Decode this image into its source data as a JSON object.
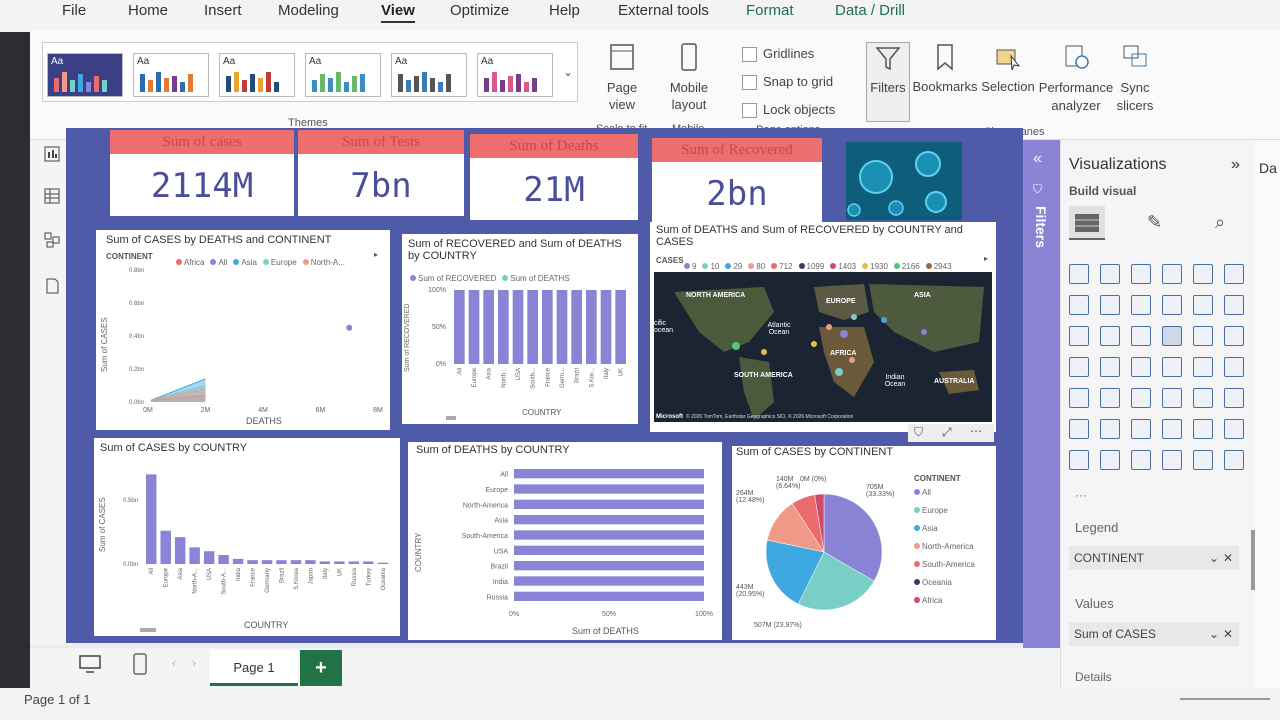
{
  "menu": {
    "items": [
      "File",
      "Home",
      "Insert",
      "Modeling",
      "View",
      "Optimize",
      "Help",
      "External tools"
    ],
    "contextual": [
      "Format",
      "Data / Drill"
    ],
    "active": "View"
  },
  "ribbon": {
    "themes_group": "Themes",
    "page_view": "Page view",
    "mobile_layout": "Mobile layout",
    "scale_to_fit": "Scale to fit",
    "mobile_group": "Mobile",
    "gridlines": "Gridlines",
    "snap_to_grid": "Snap to grid",
    "lock_objects": "Lock objects",
    "page_options_group": "Page options",
    "filters": "Filters",
    "bookmarks": "Bookmarks",
    "selection": "Selection",
    "performance_analyzer": "Performance analyzer",
    "sync_slicers": "Sync slicers",
    "show_panes_group": "Show panes"
  },
  "kpis": [
    {
      "label": "Sum of cases",
      "value": "2114M"
    },
    {
      "label": "Sum of Tests",
      "value": "7bn"
    },
    {
      "label": "Sum of Deaths",
      "value": "21M"
    },
    {
      "label": "Sum of Recovered",
      "value": "2bn"
    }
  ],
  "visuals": {
    "area_title": "Sum of CASES by DEATHS and CONTINENT",
    "area_legend_title": "CONTINENT",
    "area_legend": [
      "Africa",
      "All",
      "Asia",
      "Europe",
      "North-A..."
    ],
    "area_yticks": [
      "0.8bn",
      "0.6bn",
      "0.4bn",
      "0.2bn",
      "0.0bn"
    ],
    "area_xticks": [
      "0M",
      "2M",
      "4M",
      "6M",
      "8M"
    ],
    "area_xlabel": "DEATHS",
    "area_ylabel": "Sum of CASES",
    "recov_title": "Sum of RECOVERED and Sum of DEATHS by COUNTRY",
    "recov_legend": [
      "Sum of RECOVERED",
      "Sum of DEATHS"
    ],
    "recov_yticks": [
      "100%",
      "50%",
      "0%"
    ],
    "recov_ylabel": "Sum of RECOVERED",
    "recov_xlabel": "COUNTRY",
    "recov_countries": [
      "All",
      "Europe",
      "Asia",
      "North...",
      "USA",
      "South...",
      "France",
      "Germ...",
      "Brazil",
      "S.Kor...",
      "Italy",
      "UK"
    ],
    "map_title": "Sum of DEATHS and Sum of RECOVERED by COUNTRY and CASES",
    "map_legend_title": "CASES",
    "map_legend": [
      "9",
      "10",
      "29",
      "80",
      "712",
      "1099",
      "1403",
      "1930",
      "2166",
      "2943"
    ],
    "map_labels": [
      "NORTH AMERICA",
      "EUROPE",
      "ASIA",
      "Atlantic Ocean",
      "AFRICA",
      "SOUTH AMERICA",
      "Indian Ocean",
      "AUSTRALIA",
      "cific ocean"
    ],
    "map_credit": "© 2026 TomTom, Earthstar Geographics SIO, © 2026 Microsoft Corporation",
    "map_ms": "Microsoft",
    "cases_country_title": "Sum of CASES by COUNTRY",
    "cases_country_yticks": [
      "0.5bn",
      "0.0bn"
    ],
    "cases_country_ylabel": "Sum of CASES",
    "cases_country_xlabel": "COUNTRY",
    "cases_country_names": [
      "All",
      "Europe",
      "Asia",
      "North-A...",
      "USA",
      "South-A...",
      "India",
      "France",
      "Germany",
      "Brazil",
      "S.Korea",
      "Japan",
      "Italy",
      "UK",
      "Russia",
      "Turkey",
      "Oceania"
    ],
    "deaths_country_title": "Sum of DEATHS by COUNTRY",
    "deaths_country_names": [
      "All",
      "Europe",
      "North-America",
      "Asia",
      "South-America",
      "USA",
      "Brazil",
      "India",
      "Russia"
    ],
    "deaths_country_xticks": [
      "0%",
      "50%",
      "100%"
    ],
    "deaths_country_xlabel": "Sum of DEATHS",
    "deaths_country_ylabel": "COUNTRY",
    "pie_title": "Sum of CASES by CONTINENT",
    "pie_legend_title": "CONTINENT",
    "pie_legend": [
      "All",
      "Europe",
      "Asia",
      "North-America",
      "South-America",
      "Oceania",
      "Africa"
    ],
    "pie_labels": [
      "705M (33.33%)",
      "507M (23.97%)",
      "443M (20.95%)",
      "264M (12.48%)",
      "140M (6.64%)",
      "0M (0%)"
    ]
  },
  "chart_data": [
    {
      "type": "area",
      "title": "Sum of CASES by DEATHS and CONTINENT",
      "xlabel": "DEATHS",
      "ylabel": "Sum of CASES",
      "ylim": [
        0,
        0.8
      ],
      "xlim": [
        0,
        8
      ],
      "series": [
        {
          "name": "Africa",
          "x": [
            0.1,
            2.0
          ],
          "y": [
            0.01,
            0.04
          ]
        },
        {
          "name": "Asia",
          "x": [
            0.1,
            2.0
          ],
          "y": [
            0.01,
            0.14
          ]
        },
        {
          "name": "Europe",
          "x": [
            0.1,
            2.0
          ],
          "y": [
            0.01,
            0.1
          ]
        },
        {
          "name": "North-A...",
          "x": [
            0.1,
            2.0
          ],
          "y": [
            0.01,
            0.08
          ]
        },
        {
          "name": "All",
          "x": [
            7.0
          ],
          "y": [
            0.45
          ]
        }
      ]
    },
    {
      "type": "bar",
      "title": "Sum of RECOVERED and Sum of DEATHS by COUNTRY",
      "categories": [
        "All",
        "Europe",
        "Asia",
        "North...",
        "USA",
        "South...",
        "France",
        "Germ...",
        "Brazil",
        "S.Kor...",
        "Italy",
        "UK"
      ],
      "series": [
        {
          "name": "Sum of RECOVERED",
          "values": [
            100,
            100,
            100,
            100,
            100,
            100,
            100,
            100,
            100,
            100,
            100,
            100
          ]
        },
        {
          "name": "Sum of DEATHS",
          "values": [
            0,
            0,
            0,
            0,
            0,
            0,
            0,
            0,
            0,
            0,
            0,
            0
          ]
        }
      ],
      "ylim": [
        0,
        100
      ]
    },
    {
      "type": "bar",
      "title": "Sum of CASES by COUNTRY",
      "categories": [
        "All",
        "Europe",
        "Asia",
        "North-A...",
        "USA",
        "South-A...",
        "India",
        "France",
        "Germany",
        "Brazil",
        "S.Korea",
        "Japan",
        "Italy",
        "UK",
        "Russia",
        "Turkey",
        "Oceania"
      ],
      "values": [
        0.7,
        0.26,
        0.21,
        0.13,
        0.1,
        0.07,
        0.04,
        0.03,
        0.03,
        0.03,
        0.03,
        0.03,
        0.02,
        0.02,
        0.02,
        0.02,
        0.01
      ],
      "ylim": [
        0,
        0.75
      ]
    },
    {
      "type": "bar",
      "orientation": "horizontal",
      "title": "Sum of DEATHS by COUNTRY",
      "categories": [
        "All",
        "Europe",
        "North-America",
        "Asia",
        "South-America",
        "USA",
        "Brazil",
        "India",
        "Russia"
      ],
      "values": [
        100,
        100,
        100,
        100,
        100,
        100,
        100,
        100,
        100
      ],
      "xlim": [
        0,
        100
      ]
    },
    {
      "type": "pie",
      "title": "Sum of CASES by CONTINENT",
      "categories": [
        "All",
        "Europe",
        "Asia",
        "North-America",
        "South-America",
        "Oceania",
        "Africa"
      ],
      "values": [
        705,
        507,
        443,
        264,
        140,
        0,
        55
      ],
      "colors": [
        "#8b83d6",
        "#79cfc8",
        "#3ea8e0",
        "#f19a8a",
        "#e96b6b",
        "#3b3a66",
        "#cc4a6a"
      ]
    }
  ],
  "panes": {
    "filters": "Filters",
    "visualizations": "Visualizations",
    "build_visual": "Build visual",
    "data_edge": "Da",
    "legend_label": "Legend",
    "legend_value": "CONTINENT",
    "values_label": "Values",
    "values_value": "Sum of CASES",
    "details_label": "Details"
  },
  "bottom": {
    "page_tab": "Page 1",
    "add_page": "+",
    "status": "Page 1 of 1"
  }
}
